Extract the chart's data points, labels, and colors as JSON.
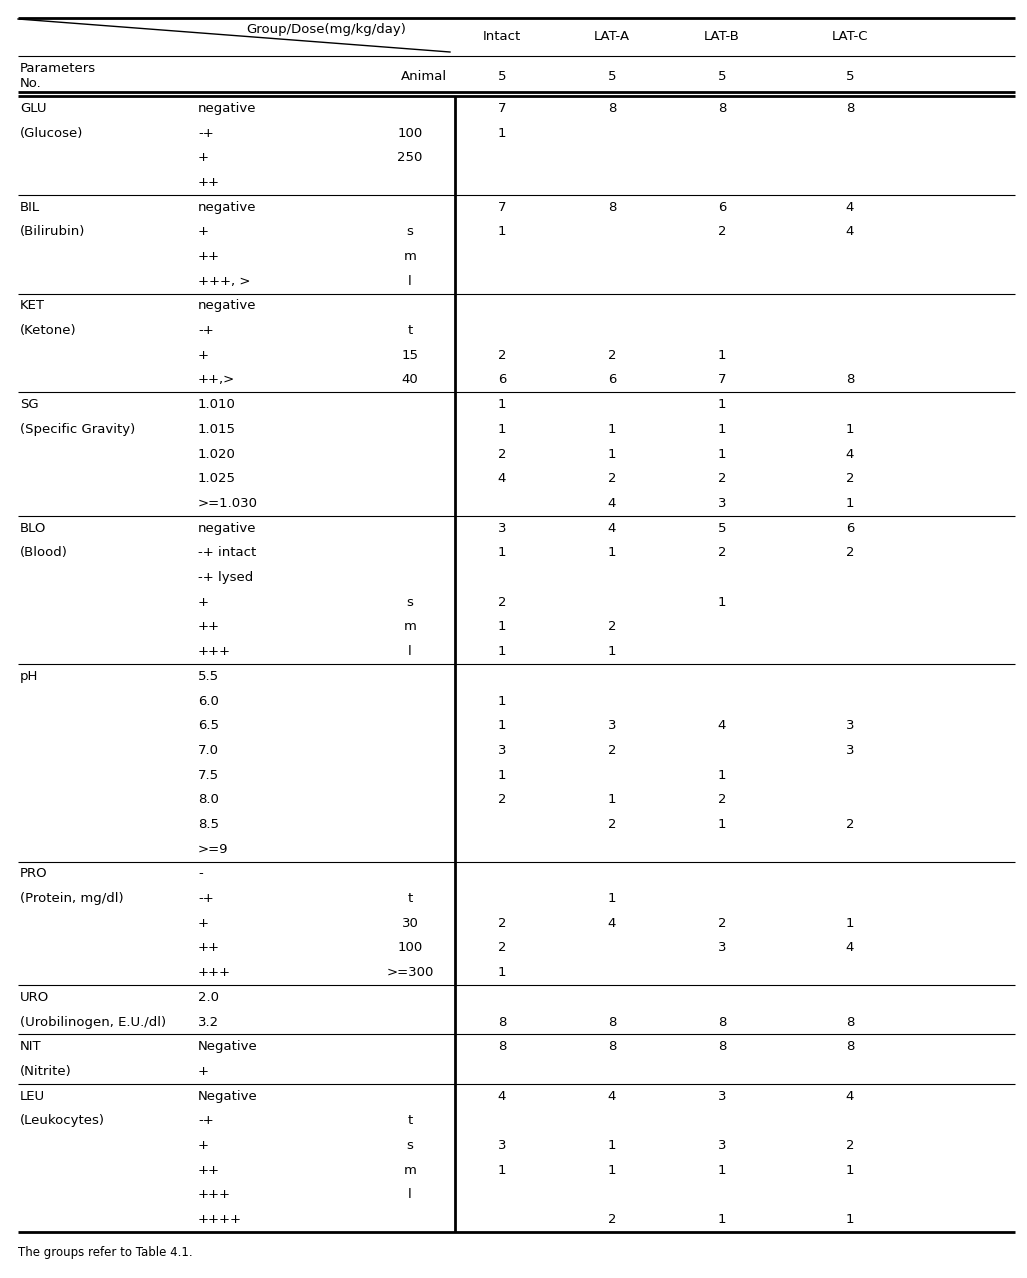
{
  "footnote": "The groups refer to Table 4.1.",
  "col_headers": [
    "Intact",
    "LAT-A",
    "LAT-B",
    "LAT-C"
  ],
  "animal_counts": [
    "5",
    "5",
    "5",
    "5"
  ],
  "rows": [
    {
      "param": "GLU",
      "sub": "(Glucose)",
      "levels": [
        {
          "level": "negative",
          "dose": "",
          "vals": [
            "7",
            "8",
            "8",
            "8"
          ]
        },
        {
          "level": "-+",
          "dose": "100",
          "vals": [
            "1",
            "",
            "",
            ""
          ]
        },
        {
          "level": "+",
          "dose": "250",
          "vals": [
            "",
            "",
            "",
            ""
          ]
        },
        {
          "level": "++",
          "dose": "",
          "vals": [
            "",
            "",
            "",
            ""
          ]
        }
      ]
    },
    {
      "param": "BIL",
      "sub": "(Bilirubin)",
      "levels": [
        {
          "level": "negative",
          "dose": "",
          "vals": [
            "7",
            "8",
            "6",
            "4"
          ]
        },
        {
          "level": "+",
          "dose": "s",
          "vals": [
            "1",
            "",
            "2",
            "4"
          ]
        },
        {
          "level": "++",
          "dose": "m",
          "vals": [
            "",
            "",
            "",
            ""
          ]
        },
        {
          "level": "+++, >",
          "dose": "l",
          "vals": [
            "",
            "",
            "",
            ""
          ]
        }
      ]
    },
    {
      "param": "KET",
      "sub": "(Ketone)",
      "levels": [
        {
          "level": "negative",
          "dose": "",
          "vals": [
            "",
            "",
            "",
            ""
          ]
        },
        {
          "level": "-+",
          "dose": "t",
          "vals": [
            "",
            "",
            "",
            ""
          ]
        },
        {
          "level": "+",
          "dose": "15",
          "vals": [
            "2",
            "2",
            "1",
            ""
          ]
        },
        {
          "level": "++,>",
          "dose": "40",
          "vals": [
            "6",
            "6",
            "7",
            "8"
          ]
        }
      ]
    },
    {
      "param": "SG",
      "sub": "(Specific Gravity)",
      "levels": [
        {
          "level": "1.010",
          "dose": "",
          "vals": [
            "1",
            "",
            "1",
            ""
          ]
        },
        {
          "level": "1.015",
          "dose": "",
          "vals": [
            "1",
            "1",
            "1",
            "1"
          ]
        },
        {
          "level": "1.020",
          "dose": "",
          "vals": [
            "2",
            "1",
            "1",
            "4"
          ]
        },
        {
          "level": "1.025",
          "dose": "",
          "vals": [
            "4",
            "2",
            "2",
            "2"
          ]
        },
        {
          "level": ">=1.030",
          "dose": "",
          "vals": [
            "",
            "4",
            "3",
            "1"
          ]
        }
      ]
    },
    {
      "param": "BLO",
      "sub": "(Blood)",
      "levels": [
        {
          "level": "negative",
          "dose": "",
          "vals": [
            "3",
            "4",
            "5",
            "6"
          ]
        },
        {
          "level": "-+ intact",
          "dose": "",
          "vals": [
            "1",
            "1",
            "2",
            "2"
          ]
        },
        {
          "level": "-+ lysed",
          "dose": "",
          "vals": [
            "",
            "",
            "",
            ""
          ]
        },
        {
          "level": "+",
          "dose": "s",
          "vals": [
            "2",
            "",
            "1",
            ""
          ]
        },
        {
          "level": "++",
          "dose": "m",
          "vals": [
            "1",
            "2",
            "",
            ""
          ]
        },
        {
          "level": "+++",
          "dose": "l",
          "vals": [
            "1",
            "1",
            "",
            ""
          ]
        }
      ]
    },
    {
      "param": "pH",
      "sub": "",
      "levels": [
        {
          "level": "5.5",
          "dose": "",
          "vals": [
            "",
            "",
            "",
            ""
          ]
        },
        {
          "level": "6.0",
          "dose": "",
          "vals": [
            "1",
            "",
            "",
            ""
          ]
        },
        {
          "level": "6.5",
          "dose": "",
          "vals": [
            "1",
            "3",
            "4",
            "3"
          ]
        },
        {
          "level": "7.0",
          "dose": "",
          "vals": [
            "3",
            "2",
            "",
            "3"
          ]
        },
        {
          "level": "7.5",
          "dose": "",
          "vals": [
            "1",
            "",
            "1",
            ""
          ]
        },
        {
          "level": "8.0",
          "dose": "",
          "vals": [
            "2",
            "1",
            "2",
            ""
          ]
        },
        {
          "level": "8.5",
          "dose": "",
          "vals": [
            "",
            "2",
            "1",
            "2"
          ]
        },
        {
          "level": ">=9",
          "dose": "",
          "vals": [
            "",
            "",
            "",
            ""
          ]
        }
      ]
    },
    {
      "param": "PRO",
      "sub": "(Protein, mg/dl)",
      "levels": [
        {
          "level": "-",
          "dose": "",
          "vals": [
            "",
            "",
            "",
            ""
          ]
        },
        {
          "level": "-+",
          "dose": "t",
          "vals": [
            "",
            "1",
            "",
            ""
          ]
        },
        {
          "level": "+",
          "dose": "30",
          "vals": [
            "2",
            "4",
            "2",
            "1"
          ]
        },
        {
          "level": "++",
          "dose": "100",
          "vals": [
            "2",
            "",
            "3",
            "4"
          ]
        },
        {
          "level": "+++",
          "dose": ">=300",
          "vals": [
            "1",
            "",
            "",
            ""
          ]
        }
      ]
    },
    {
      "param": "URO",
      "sub": "(Urobilinogen, E.U./dl)",
      "levels": [
        {
          "level": "2.0",
          "dose": "",
          "vals": [
            "",
            "",
            "",
            ""
          ]
        },
        {
          "level": "3.2",
          "dose": "",
          "vals": [
            "8",
            "8",
            "8",
            "8"
          ]
        }
      ]
    },
    {
      "param": "NIT",
      "sub": "(Nitrite)",
      "levels": [
        {
          "level": "Negative",
          "dose": "",
          "vals": [
            "8",
            "8",
            "8",
            "8"
          ]
        },
        {
          "level": "+",
          "dose": "",
          "vals": [
            "",
            "",
            "",
            ""
          ]
        }
      ]
    },
    {
      "param": "LEU",
      "sub": "(Leukocytes)",
      "levels": [
        {
          "level": "Negative",
          "dose": "",
          "vals": [
            "4",
            "4",
            "3",
            "4"
          ]
        },
        {
          "level": "-+",
          "dose": "t",
          "vals": [
            "",
            "",
            "",
            ""
          ]
        },
        {
          "level": "+",
          "dose": "s",
          "vals": [
            "3",
            "1",
            "3",
            "2"
          ]
        },
        {
          "level": "++",
          "dose": "m",
          "vals": [
            "1",
            "1",
            "1",
            "1"
          ]
        },
        {
          "level": "+++",
          "dose": "l",
          "vals": [
            "",
            "",
            "",
            ""
          ]
        },
        {
          "level": "++++",
          "dose": "",
          "vals": [
            "",
            "2",
            "1",
            "1"
          ]
        }
      ]
    }
  ]
}
